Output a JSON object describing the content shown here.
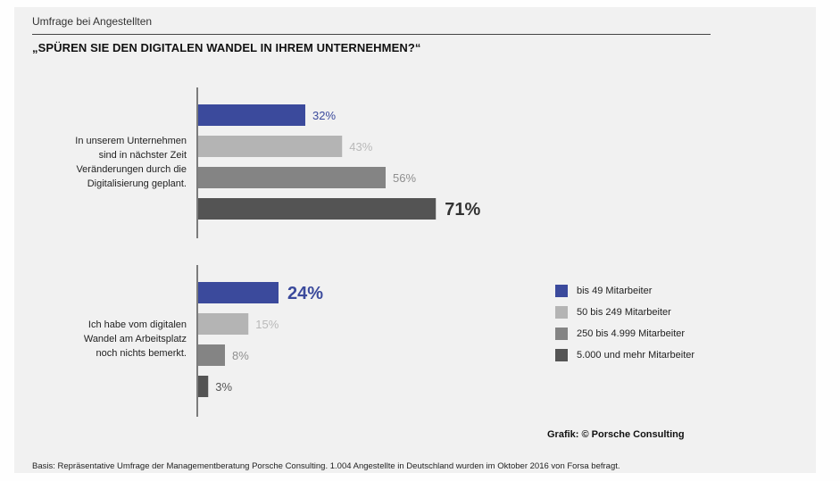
{
  "header": {
    "eyebrow": "Umfrage bei Angestellten",
    "title": "„SPÜREN SIE DEN DIGITALEN WANDEL IN IHREM UNTERNEHMEN?“"
  },
  "footer": {
    "note": "Basis: Repräsentative Umfrage der Managementberatung Porsche Consulting. 1.004 Angestellte in Deutschland wurden im Oktober 2016 von Forsa befragt.",
    "credit": "Grafik: © Porsche Consulting"
  },
  "chart_data": {
    "type": "bar",
    "orientation": "horizontal",
    "categories": [
      "In unserem Unternehmen sind in nächster Zeit Veränderungen durch die Digitalisierung geplant.",
      "Ich habe vom digitalen Wandel am Arbeitsplatz noch nichts bemerkt."
    ],
    "category_lines": [
      [
        "In unserem Unternehmen",
        "sind in nächster Zeit",
        "Veränderungen durch die",
        "Digitalisierung geplant."
      ],
      [
        "Ich habe vom digitalen",
        "Wandel am Arbeitsplatz",
        "noch nichts bemerkt."
      ]
    ],
    "series": [
      {
        "name": "bis 49 Mitarbeiter",
        "values": [
          32,
          24
        ],
        "color": "#3b4a9c"
      },
      {
        "name": "50 bis 249 Mitarbeiter",
        "values": [
          43,
          15
        ],
        "color": "#b4b4b4"
      },
      {
        "name": "250 bis 4.999 Mitarbeiter",
        "values": [
          56,
          8
        ],
        "color": "#848484"
      },
      {
        "name": "5.000 und mehr Mitarbeiter",
        "values": [
          71,
          3
        ],
        "color": "#545454"
      }
    ],
    "label_suffix": "%",
    "highlight": [
      {
        "category": 0,
        "series": 3
      },
      {
        "category": 1,
        "series": 0
      }
    ],
    "grid": false,
    "legend_position": "right"
  }
}
